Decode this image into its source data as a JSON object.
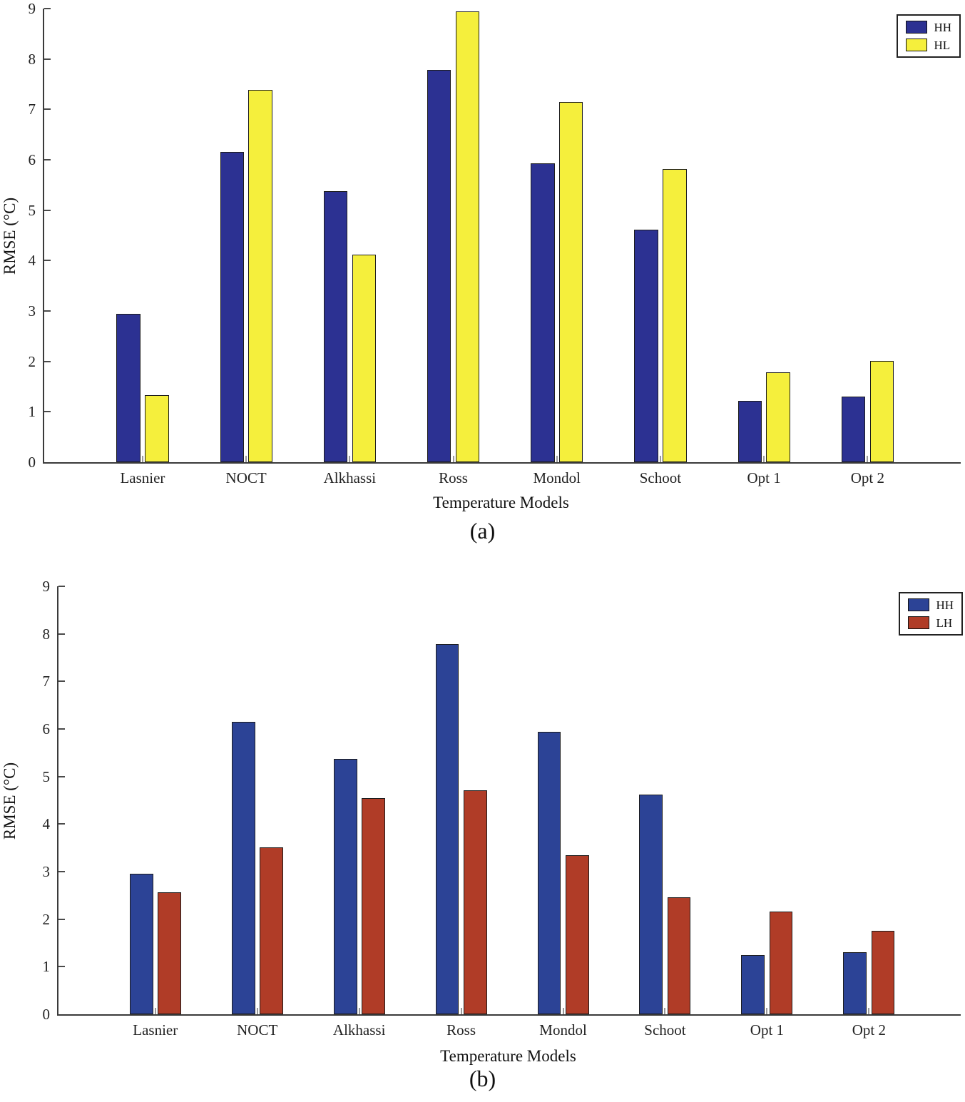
{
  "figure": {
    "description": "Two grouped bar charts comparing RMSE of temperature models"
  },
  "chart_data": [
    {
      "id": "a",
      "type": "bar",
      "title": "",
      "xlabel": "Temperature Models",
      "ylabel": "RMSE (°C)",
      "caption": "(a)",
      "ylim": [
        0,
        9
      ],
      "yticks": [
        0,
        1,
        2,
        3,
        4,
        5,
        6,
        7,
        8,
        9
      ],
      "grid": false,
      "legend_position": "top-right",
      "categories": [
        "Lasnier",
        "NOCT",
        "Alkhassi",
        "Ross",
        "Mondol",
        "Schoot",
        "Opt 1",
        "Opt 2"
      ],
      "series": [
        {
          "name": "HH",
          "color": "#2c3192",
          "values": [
            2.95,
            6.15,
            5.38,
            7.78,
            5.93,
            4.62,
            1.22,
            1.3
          ]
        },
        {
          "name": "HL",
          "color": "#f5ef3c",
          "values": [
            1.33,
            7.38,
            4.12,
            8.95,
            7.15,
            5.82,
            1.79,
            2.01
          ]
        }
      ]
    },
    {
      "id": "b",
      "type": "bar",
      "title": "",
      "xlabel": "Temperature Models",
      "ylabel": "RMSE (°C)",
      "caption": "(b)",
      "ylim": [
        0,
        9
      ],
      "yticks": [
        0,
        1,
        2,
        3,
        4,
        5,
        6,
        7,
        8,
        9
      ],
      "grid": false,
      "legend_position": "top-right",
      "categories": [
        "Lasnier",
        "NOCT",
        "Alkhassi",
        "Ross",
        "Mondol",
        "Schoot",
        "Opt 1",
        "Opt 2"
      ],
      "series": [
        {
          "name": "HH",
          "color": "#2c4396",
          "values": [
            2.95,
            6.15,
            5.37,
            7.78,
            5.94,
            4.62,
            1.25,
            1.31
          ]
        },
        {
          "name": "LH",
          "color": "#b03c27",
          "values": [
            2.57,
            3.51,
            4.54,
            4.71,
            3.35,
            2.46,
            2.16,
            1.75
          ]
        }
      ]
    }
  ]
}
